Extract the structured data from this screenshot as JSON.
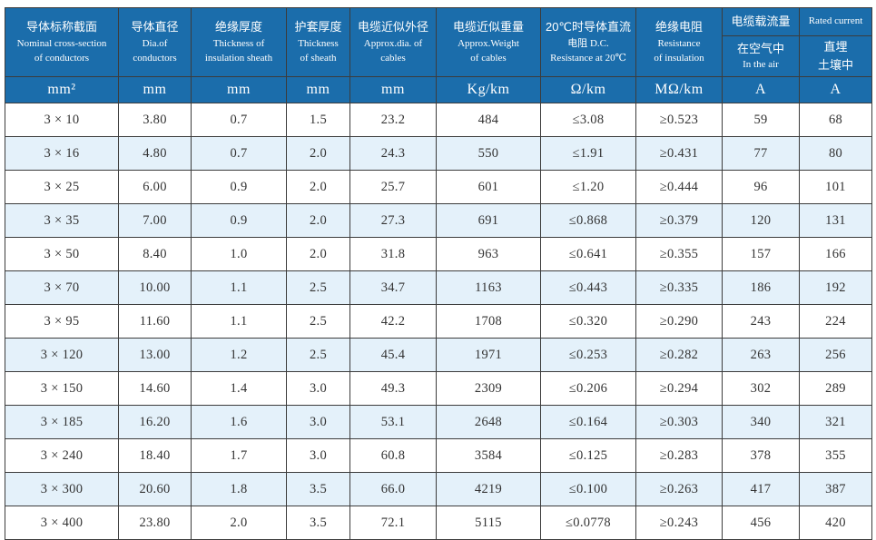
{
  "table": {
    "header": {
      "cols": [
        {
          "lines": [
            "导体标称截面",
            "Nominal cross-section",
            "of conductors"
          ],
          "unit": "mm²"
        },
        {
          "lines": [
            "导体直径",
            "Dia.of",
            "conductors"
          ],
          "unit": "mm"
        },
        {
          "lines": [
            "绝缘厚度",
            "Thickness of",
            "insulation sheath"
          ],
          "unit": "mm"
        },
        {
          "lines": [
            "护套厚度",
            "Thickness",
            "of sheath"
          ],
          "unit": "mm"
        },
        {
          "lines": [
            "电缆近似外径",
            "Approx.dia. of",
            "cables"
          ],
          "unit": "mm"
        },
        {
          "lines": [
            "电缆近似重量",
            "Approx.Weight",
            "of cables"
          ],
          "unit": "Kg/km"
        },
        {
          "lines": [
            "20℃时导体直流",
            "电阻 D.C.",
            "Resistance at 20℃"
          ],
          "unit": "Ω/km"
        },
        {
          "lines": [
            "绝缘电阻",
            "Resistance",
            "of insulation"
          ],
          "unit": "MΩ/km"
        },
        {
          "top": "电缆载流量",
          "sub1": "在空气中",
          "sub2": "In the air",
          "unit": "A"
        },
        {
          "top": "Rated current",
          "sub1": "直埋",
          "sub2": "土壤中",
          "unit": "A"
        }
      ]
    },
    "rows": [
      [
        "3 × 10",
        "3.80",
        "0.7",
        "1.5",
        "23.2",
        "484",
        "≤3.08",
        "≥0.523",
        "59",
        "68"
      ],
      [
        "3 × 16",
        "4.80",
        "0.7",
        "2.0",
        "24.3",
        "550",
        "≤1.91",
        "≥0.431",
        "77",
        "80"
      ],
      [
        "3 × 25",
        "6.00",
        "0.9",
        "2.0",
        "25.7",
        "601",
        "≤1.20",
        "≥0.444",
        "96",
        "101"
      ],
      [
        "3 × 35",
        "7.00",
        "0.9",
        "2.0",
        "27.3",
        "691",
        "≤0.868",
        "≥0.379",
        "120",
        "131"
      ],
      [
        "3 × 50",
        "8.40",
        "1.0",
        "2.0",
        "31.8",
        "963",
        "≤0.641",
        "≥0.355",
        "157",
        "166"
      ],
      [
        "3 × 70",
        "10.00",
        "1.1",
        "2.5",
        "34.7",
        "1163",
        "≤0.443",
        "≥0.335",
        "186",
        "192"
      ],
      [
        "3 × 95",
        "11.60",
        "1.1",
        "2.5",
        "42.2",
        "1708",
        "≤0.320",
        "≥0.290",
        "243",
        "224"
      ],
      [
        "3 × 120",
        "13.00",
        "1.2",
        "2.5",
        "45.4",
        "1971",
        "≤0.253",
        "≥0.282",
        "263",
        "256"
      ],
      [
        "3 × 150",
        "14.60",
        "1.4",
        "3.0",
        "49.3",
        "2309",
        "≤0.206",
        "≥0.294",
        "302",
        "289"
      ],
      [
        "3 × 185",
        "16.20",
        "1.6",
        "3.0",
        "53.1",
        "2648",
        "≤0.164",
        "≥0.303",
        "340",
        "321"
      ],
      [
        "3 × 240",
        "18.40",
        "1.7",
        "3.0",
        "60.8",
        "3584",
        "≤0.125",
        "≥0.283",
        "378",
        "355"
      ],
      [
        "3 × 300",
        "20.60",
        "1.8",
        "3.5",
        "66.0",
        "4219",
        "≤0.100",
        "≥0.263",
        "417",
        "387"
      ],
      [
        "3 × 400",
        "23.80",
        "2.0",
        "3.5",
        "72.1",
        "5115",
        "≤0.0778",
        "≥0.243",
        "456",
        "420"
      ]
    ],
    "colors": {
      "header_bg": "#1b6dab",
      "alt_row_bg": "#e4f1fa",
      "border": "#3c3c3c",
      "data_text": "#333333"
    }
  }
}
